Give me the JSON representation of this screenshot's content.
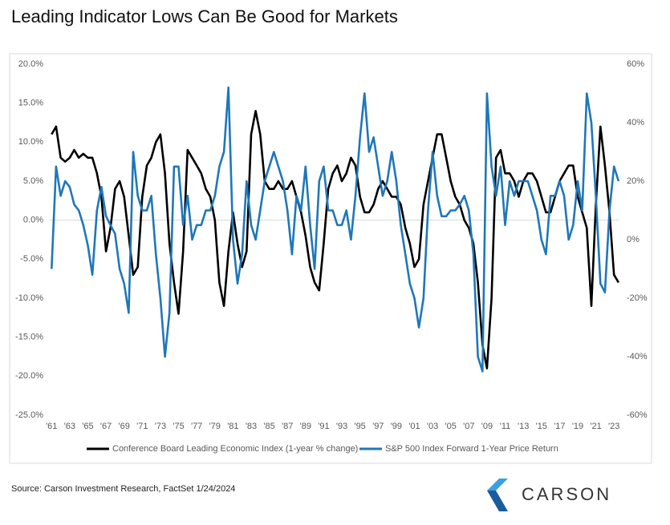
{
  "chart_data": {
    "type": "line",
    "title": "Leading Indicator Lows Can Be Good for Markets",
    "source": "Source: Carson Investment Research, FactSet 1/24/2024",
    "logo": "CARSON",
    "x": [
      1961,
      1961.5,
      1962,
      1962.5,
      1963,
      1963.5,
      1964,
      1964.5,
      1965,
      1965.5,
      1966,
      1966.5,
      1967,
      1967.5,
      1968,
      1968.5,
      1969,
      1969.5,
      1970,
      1970.5,
      1971,
      1971.5,
      1972,
      1972.5,
      1973,
      1973.5,
      1974,
      1974.5,
      1975,
      1975.5,
      1976,
      1976.5,
      1977,
      1977.5,
      1978,
      1978.5,
      1979,
      1979.5,
      1980,
      1980.5,
      1981,
      1981.5,
      1982,
      1982.5,
      1983,
      1983.5,
      1984,
      1984.5,
      1985,
      1985.5,
      1986,
      1986.5,
      1987,
      1987.5,
      1988,
      1988.5,
      1989,
      1989.5,
      1990,
      1990.5,
      1991,
      1991.5,
      1992,
      1992.5,
      1993,
      1993.5,
      1994,
      1994.5,
      1995,
      1995.5,
      1996,
      1996.5,
      1997,
      1997.5,
      1998,
      1998.5,
      1999,
      1999.5,
      2000,
      2000.5,
      2001,
      2001.5,
      2002,
      2002.5,
      2003,
      2003.5,
      2004,
      2004.5,
      2005,
      2005.5,
      2006,
      2006.5,
      2007,
      2007.5,
      2008,
      2008.5,
      2009,
      2009.5,
      2010,
      2010.5,
      2011,
      2011.5,
      2012,
      2012.5,
      2013,
      2013.5,
      2014,
      2014.5,
      2015,
      2015.5,
      2016,
      2016.5,
      2017,
      2017.5,
      2018,
      2018.5,
      2019,
      2019.5,
      2020,
      2020.5,
      2021,
      2021.5,
      2022,
      2022.5,
      2023,
      2023.5
    ],
    "series": [
      {
        "name": "Conference Board Leading Economic Index (1-year % change)",
        "color": "#000000",
        "axis": "y",
        "values": [
          11,
          12,
          8,
          7.5,
          8,
          9,
          8,
          8.5,
          8,
          8,
          6,
          3,
          -4,
          -1,
          4,
          5,
          3,
          -2,
          -7,
          -6,
          3,
          7,
          8,
          10,
          11,
          6,
          -3,
          -8,
          -12,
          -4,
          9,
          8,
          7,
          6,
          4,
          3,
          0,
          -8,
          -11,
          -4,
          1,
          -3,
          -6,
          -4,
          11,
          14,
          11,
          5,
          4,
          4,
          5,
          4,
          4,
          5,
          3,
          1,
          -2,
          -6,
          -8,
          -9,
          -3,
          4,
          6,
          7,
          5,
          6,
          8,
          7,
          3,
          1,
          1,
          2,
          4,
          5,
          4,
          3,
          3,
          2,
          -1,
          -3,
          -6,
          -5,
          2,
          5,
          8,
          11,
          11,
          8,
          5,
          3,
          2,
          0,
          -1,
          -3,
          -8,
          -16,
          -19,
          -10,
          8,
          9,
          6,
          6,
          5,
          3,
          5,
          6,
          6,
          5,
          3,
          1,
          1,
          3,
          5,
          6,
          7,
          7,
          3,
          1,
          -1,
          -11,
          2,
          12,
          7,
          1,
          -7,
          -8
        ]
      },
      {
        "name": "S&P 500 Index Forward 1-Year Price Return",
        "color": "#1f77b8",
        "axis": "y2",
        "values": [
          -10,
          25,
          15,
          20,
          18,
          12,
          10,
          5,
          -2,
          -12,
          10,
          18,
          8,
          5,
          2,
          -10,
          -15,
          -25,
          30,
          15,
          10,
          10,
          15,
          -5,
          -20,
          -40,
          -25,
          25,
          25,
          5,
          15,
          0,
          5,
          5,
          10,
          10,
          15,
          25,
          30,
          52,
          0,
          -15,
          -5,
          20,
          5,
          0,
          10,
          20,
          25,
          30,
          25,
          20,
          10,
          -5,
          15,
          10,
          25,
          5,
          -10,
          20,
          25,
          10,
          10,
          5,
          5,
          10,
          0,
          15,
          35,
          50,
          30,
          35,
          25,
          15,
          20,
          30,
          20,
          5,
          -5,
          -15,
          -20,
          -30,
          -20,
          10,
          30,
          15,
          8,
          8,
          10,
          10,
          12,
          15,
          10,
          -5,
          -40,
          -45,
          50,
          25,
          15,
          25,
          5,
          20,
          15,
          20,
          20,
          20,
          15,
          10,
          0,
          -5,
          15,
          15,
          20,
          15,
          0,
          5,
          20,
          10,
          50,
          40,
          15,
          -15,
          -18,
          10,
          25,
          20
        ]
      }
    ],
    "xlim": [
      1960.8,
      2023.6
    ],
    "xticks": [
      {
        "value": 1961,
        "label": "'61"
      },
      {
        "value": 1963,
        "label": "'63"
      },
      {
        "value": 1965,
        "label": "'65"
      },
      {
        "value": 1967,
        "label": "'67"
      },
      {
        "value": 1969,
        "label": "'69"
      },
      {
        "value": 1971,
        "label": "'71"
      },
      {
        "value": 1973,
        "label": "'73"
      },
      {
        "value": 1975,
        "label": "'75"
      },
      {
        "value": 1977,
        "label": "'77"
      },
      {
        "value": 1979,
        "label": "'79"
      },
      {
        "value": 1981,
        "label": "'81"
      },
      {
        "value": 1983,
        "label": "'83"
      },
      {
        "value": 1985,
        "label": "'85"
      },
      {
        "value": 1987,
        "label": "'87"
      },
      {
        "value": 1989,
        "label": "'89"
      },
      {
        "value": 1991,
        "label": "'91"
      },
      {
        "value": 1993,
        "label": "'93"
      },
      {
        "value": 1995,
        "label": "'95"
      },
      {
        "value": 1997,
        "label": "'97"
      },
      {
        "value": 1999,
        "label": "'99"
      },
      {
        "value": 2001,
        "label": "'01"
      },
      {
        "value": 2003,
        "label": "'03"
      },
      {
        "value": 2005,
        "label": "'05"
      },
      {
        "value": 2007,
        "label": "'07"
      },
      {
        "value": 2009,
        "label": "'09"
      },
      {
        "value": 2011,
        "label": "'11"
      },
      {
        "value": 2013,
        "label": "'13"
      },
      {
        "value": 2015,
        "label": "'15"
      },
      {
        "value": 2017,
        "label": "'17"
      },
      {
        "value": 2019,
        "label": "'19"
      },
      {
        "value": 2021,
        "label": "'21"
      },
      {
        "value": 2023,
        "label": "'23"
      }
    ],
    "ylim": [
      -25,
      20
    ],
    "yticks": [
      {
        "value": -25,
        "label": "-25.0%"
      },
      {
        "value": -20,
        "label": "-20.0%"
      },
      {
        "value": -15,
        "label": "-15.0%"
      },
      {
        "value": -10,
        "label": "-10.0%"
      },
      {
        "value": -5,
        "label": "-5.0%"
      },
      {
        "value": 0,
        "label": "0.0%"
      },
      {
        "value": 5,
        "label": "5.0%"
      },
      {
        "value": 10,
        "label": "10.0%"
      },
      {
        "value": 15,
        "label": "15.0%"
      },
      {
        "value": 20,
        "label": "20.0%"
      }
    ],
    "y2lim": [
      -60,
      60
    ],
    "y2ticks": [
      {
        "value": -60,
        "label": "-60%"
      },
      {
        "value": -40,
        "label": "-40%"
      },
      {
        "value": -20,
        "label": "-20%"
      },
      {
        "value": 0,
        "label": "0%"
      },
      {
        "value": 20,
        "label": "20%"
      },
      {
        "value": 40,
        "label": "40%"
      },
      {
        "value": 60,
        "label": "60%"
      }
    ],
    "zero_line": true,
    "legend": "bottom"
  }
}
